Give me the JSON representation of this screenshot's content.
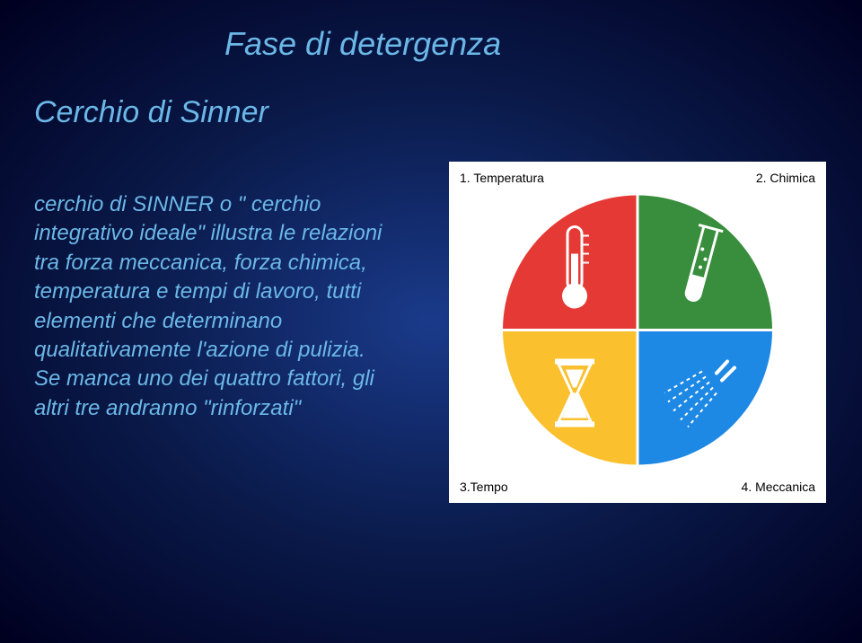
{
  "title": "Fase di detergenza",
  "subtitle": "Cerchio di Sinner",
  "paragraph": "cerchio di SINNER o \" cerchio integrativo ideale\" illustra le relazioni tra forza meccanica, forza chimica, temperatura e tempi di lavoro, tutti elementi che determinano qualitativamente l'azione di pulizia. Se manca uno dei quattro fattori, gli altri tre andranno \"rinforzati\"",
  "text_color": "#6bb8e8",
  "diagram": {
    "type": "pie",
    "background": "#ffffff",
    "labels": {
      "q1": "1. Temperatura",
      "q2": "2. Chimica",
      "q3": "3.Tempo",
      "q4": "4. Meccanica"
    },
    "label_color": "#000000",
    "label_fontsize": 14,
    "circle_radius": 150,
    "quadrants": {
      "top_left": {
        "color": "#e53935",
        "icon": "thermometer",
        "icon_color": "#ffffff"
      },
      "top_right": {
        "color": "#388e3c",
        "icon": "testtube",
        "icon_color": "#ffffff"
      },
      "bottom_left": {
        "color": "#fbc02d",
        "icon": "hourglass",
        "icon_color": "#ffffff"
      },
      "bottom_right": {
        "color": "#1e88e5",
        "icon": "spray",
        "icon_color": "#ffffff"
      }
    },
    "divider_color": "#ffffff",
    "divider_width": 3
  }
}
